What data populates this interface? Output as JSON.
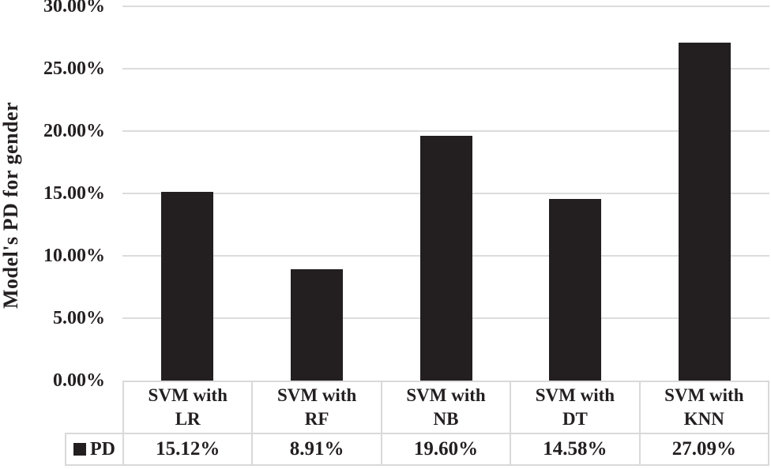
{
  "chart_data": {
    "type": "bar",
    "title": "",
    "ylabel": "Model's PD for gender",
    "xlabel": "",
    "categories": [
      "SVM with LR",
      "SVM with RF",
      "SVM with NB",
      "SVM with DT",
      "SVM with KNN"
    ],
    "series": [
      {
        "name": "PD",
        "values": [
          15.12,
          8.91,
          19.6,
          14.58,
          27.09
        ]
      }
    ],
    "value_labels": [
      "15.12%",
      "8.91%",
      "19.60%",
      "14.58%",
      "27.09%"
    ],
    "ylim": [
      0,
      30
    ],
    "ytick_step": 5,
    "ytick_labels": [
      "0.00%",
      "5.00%",
      "10.00%",
      "15.00%",
      "20.00%",
      "25.00%",
      "30.00%"
    ],
    "grid": true,
    "legend": {
      "label": "PD",
      "marker": "black-square-icon",
      "position": "bottom-left-table"
    },
    "colors": {
      "bar": "#231f20",
      "gridline": "#dcdcdc",
      "table_border": "#d9d9d9",
      "text": "#231f20",
      "background": "#ffffff"
    }
  }
}
